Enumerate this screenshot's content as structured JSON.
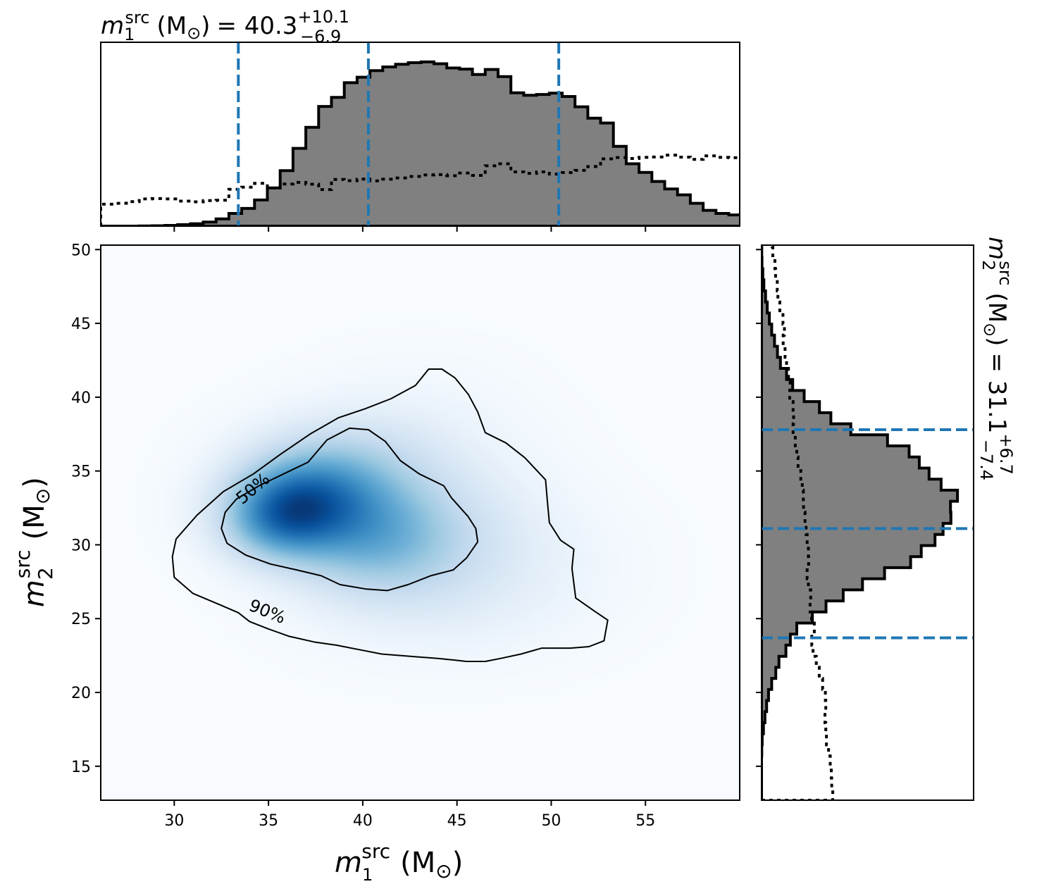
{
  "chart_data": {
    "type": "corner",
    "title_top": {
      "symbol": "m",
      "index": "1",
      "superscript": "src",
      "unit": "(M",
      "sun": "⊙",
      "close": ")",
      "equals": "= 40.3",
      "upper": "+10.1",
      "lower": "−6.9"
    },
    "title_right": {
      "symbol": "m",
      "index": "2",
      "superscript": "src",
      "unit": "(M",
      "sun": "⊙",
      "close": ")",
      "equals": "= 31.1",
      "upper": "+6.7",
      "lower": "−7.4"
    },
    "xlabel": {
      "symbol": "m",
      "index": "1",
      "superscript": "src",
      "unit": "(M",
      "sun": "⊙",
      "close": ")"
    },
    "ylabel": {
      "symbol": "m",
      "index": "2",
      "superscript": "src",
      "unit": "(M",
      "sun": "⊙",
      "close": ")"
    },
    "xlim": [
      26.1,
      60.0
    ],
    "ylim": [
      12.7,
      50.3
    ],
    "xticks": [
      30,
      35,
      40,
      45,
      50,
      55
    ],
    "yticks": [
      15,
      20,
      25,
      30,
      35,
      40,
      45,
      50
    ],
    "m1_quantiles": [
      33.4,
      40.3,
      50.4
    ],
    "m2_quantiles": [
      23.7,
      31.1,
      37.8
    ],
    "colors": {
      "density": "#08519c",
      "histogram_fill": "#808080",
      "quantile_line": "#1f77b4",
      "contour": "#000000"
    },
    "m1_histogram": {
      "bin_start": 26.1,
      "bin_width": 0.68,
      "posterior": [
        0.0,
        0.0,
        0.0,
        0.001,
        0.002,
        0.004,
        0.008,
        0.013,
        0.022,
        0.039,
        0.069,
        0.096,
        0.142,
        0.208,
        0.302,
        0.423,
        0.537,
        0.651,
        0.7,
        0.78,
        0.81,
        0.846,
        0.866,
        0.88,
        0.889,
        0.893,
        0.883,
        0.86,
        0.854,
        0.825,
        0.852,
        0.813,
        0.725,
        0.712,
        0.716,
        0.723,
        0.705,
        0.649,
        0.587,
        0.561,
        0.434,
        0.339,
        0.292,
        0.243,
        0.202,
        0.17,
        0.124,
        0.086,
        0.069,
        0.061,
        0.056,
        0.05,
        0.048,
        0.043,
        0.039,
        0.031,
        0.027,
        0.026,
        0.021,
        0.014,
        0.009,
        0.005,
        0.003,
        0.0,
        0.0,
        0.0,
        0.0,
        0.0,
        0.0,
        0.0
      ],
      "prior": [
        0.119,
        0.124,
        0.133,
        0.148,
        0.15,
        0.148,
        0.136,
        0.132,
        0.139,
        0.141,
        0.2,
        0.212,
        0.233,
        0.207,
        0.229,
        0.238,
        0.228,
        0.199,
        0.254,
        0.247,
        0.256,
        0.246,
        0.255,
        0.262,
        0.27,
        0.278,
        0.28,
        0.274,
        0.289,
        0.276,
        0.328,
        0.339,
        0.295,
        0.287,
        0.295,
        0.283,
        0.291,
        0.303,
        0.324,
        0.366,
        0.373,
        0.368,
        0.374,
        0.376,
        0.386,
        0.375,
        0.363,
        0.382,
        0.374,
        0.372,
        0.374,
        0.401,
        0.404,
        0.416,
        0.421,
        0.419,
        0.425,
        0.414,
        0.424,
        0.421,
        0.442,
        0.45,
        0.464,
        0.442,
        0.431,
        0.412,
        0.418,
        0.418,
        0.417,
        0.417
      ]
    },
    "m2_histogram": {
      "bin_start": 12.7,
      "bin_width": 0.75,
      "posterior": [
        0.0,
        0.0,
        0.0,
        0.0,
        0.001,
        0.003,
        0.009,
        0.016,
        0.024,
        0.033,
        0.048,
        0.067,
        0.082,
        0.115,
        0.136,
        0.166,
        0.24,
        0.304,
        0.385,
        0.476,
        0.58,
        0.703,
        0.753,
        0.818,
        0.856,
        0.893,
        0.891,
        0.924,
        0.847,
        0.79,
        0.744,
        0.696,
        0.594,
        0.421,
        0.327,
        0.273,
        0.201,
        0.147,
        0.118,
        0.089,
        0.075,
        0.061,
        0.048,
        0.037,
        0.027,
        0.019,
        0.011,
        0.006,
        0.002,
        0.001,
        0.0
      ],
      "prior": [
        0.336,
        0.331,
        0.329,
        0.324,
        0.316,
        0.306,
        0.303,
        0.299,
        0.303,
        0.301,
        0.288,
        0.272,
        0.258,
        0.243,
        0.237,
        0.249,
        0.236,
        0.229,
        0.232,
        0.221,
        0.215,
        0.222,
        0.221,
        0.215,
        0.21,
        0.205,
        0.198,
        0.197,
        0.192,
        0.185,
        0.172,
        0.166,
        0.159,
        0.149,
        0.151,
        0.149,
        0.133,
        0.135,
        0.127,
        0.118,
        0.111,
        0.102,
        0.108,
        0.101,
        0.086,
        0.077,
        0.074,
        0.066,
        0.063,
        0.053,
        0.05
      ]
    },
    "density_blobs": [
      {
        "x": 36.7,
        "y": 33.2,
        "sx": 2.4,
        "sy": 2.0,
        "w": 1.0
      },
      {
        "x": 35.6,
        "y": 31.6,
        "sx": 2.0,
        "sy": 1.8,
        "w": 0.85
      },
      {
        "x": 39.6,
        "y": 32.1,
        "sx": 3.0,
        "sy": 2.6,
        "w": 0.68
      },
      {
        "x": 41.0,
        "y": 29.6,
        "sx": 3.0,
        "sy": 2.4,
        "w": 0.42
      },
      {
        "x": 38.9,
        "y": 35.9,
        "sx": 3.0,
        "sy": 2.1,
        "w": 0.28
      },
      {
        "x": 44.2,
        "y": 30.9,
        "sx": 3.6,
        "sy": 3.4,
        "w": 0.22
      },
      {
        "x": 48.0,
        "y": 28.4,
        "sx": 3.8,
        "sy": 3.0,
        "w": 0.07
      },
      {
        "x": 43.0,
        "y": 37.5,
        "sx": 3.5,
        "sy": 3.0,
        "w": 0.06
      },
      {
        "x": 43.5,
        "y": 25.5,
        "sx": 4.0,
        "sy": 2.2,
        "w": 0.06
      }
    ],
    "contours": [
      {
        "level": "50%",
        "points": [
          [
            32.5,
            31.1
          ],
          [
            32.7,
            32.2
          ],
          [
            33.3,
            33.1
          ],
          [
            34.5,
            34.0
          ],
          [
            35.8,
            34.8
          ],
          [
            37.1,
            35.6
          ],
          [
            38.1,
            37.1
          ],
          [
            39.3,
            37.9
          ],
          [
            40.3,
            37.8
          ],
          [
            41.2,
            37.0
          ],
          [
            42.0,
            35.7
          ],
          [
            43.0,
            34.8
          ],
          [
            44.3,
            34.0
          ],
          [
            44.7,
            33.2
          ],
          [
            45.6,
            31.9
          ],
          [
            46.0,
            31.1
          ],
          [
            46.1,
            30.2
          ],
          [
            45.5,
            29.1
          ],
          [
            44.8,
            28.3
          ],
          [
            43.6,
            27.9
          ],
          [
            42.4,
            27.3
          ],
          [
            41.3,
            26.9
          ],
          [
            40.2,
            27.0
          ],
          [
            38.8,
            27.3
          ],
          [
            37.8,
            27.9
          ],
          [
            36.5,
            28.3
          ],
          [
            35.1,
            28.7
          ],
          [
            33.8,
            29.3
          ],
          [
            32.8,
            30.1
          ]
        ]
      },
      {
        "level": "90%",
        "points": [
          [
            29.9,
            29.2
          ],
          [
            30.1,
            30.4
          ],
          [
            31.2,
            32.0
          ],
          [
            32.6,
            33.6
          ],
          [
            34.2,
            34.8
          ],
          [
            35.6,
            36.1
          ],
          [
            37.2,
            37.5
          ],
          [
            38.7,
            38.6
          ],
          [
            40.1,
            39.2
          ],
          [
            41.5,
            39.9
          ],
          [
            42.8,
            40.8
          ],
          [
            43.5,
            41.9
          ],
          [
            44.2,
            41.9
          ],
          [
            44.9,
            41.3
          ],
          [
            45.6,
            40.2
          ],
          [
            46.1,
            39.0
          ],
          [
            46.5,
            37.6
          ],
          [
            47.6,
            36.9
          ],
          [
            48.6,
            35.9
          ],
          [
            49.7,
            34.4
          ],
          [
            49.8,
            32.9
          ],
          [
            49.9,
            31.5
          ],
          [
            50.5,
            30.3
          ],
          [
            51.2,
            29.7
          ],
          [
            51.1,
            28.4
          ],
          [
            51.3,
            26.4
          ],
          [
            52.3,
            25.5
          ],
          [
            53.0,
            24.9
          ],
          [
            52.8,
            23.5
          ],
          [
            52.0,
            23.1
          ],
          [
            51.0,
            23.0
          ],
          [
            49.5,
            23.0
          ],
          [
            48.4,
            22.6
          ],
          [
            47.3,
            22.3
          ],
          [
            46.5,
            22.1
          ],
          [
            45.5,
            22.1
          ],
          [
            44.8,
            22.2
          ],
          [
            44.0,
            22.3
          ],
          [
            43.0,
            22.4
          ],
          [
            42.0,
            22.5
          ],
          [
            41.0,
            22.6
          ],
          [
            39.8,
            22.9
          ],
          [
            38.6,
            23.2
          ],
          [
            37.5,
            23.4
          ],
          [
            36.1,
            23.8
          ],
          [
            35.0,
            24.3
          ],
          [
            34.0,
            24.8
          ],
          [
            33.4,
            25.4
          ],
          [
            32.5,
            25.9
          ],
          [
            31.0,
            26.7
          ],
          [
            30.0,
            27.8
          ]
        ]
      }
    ]
  }
}
